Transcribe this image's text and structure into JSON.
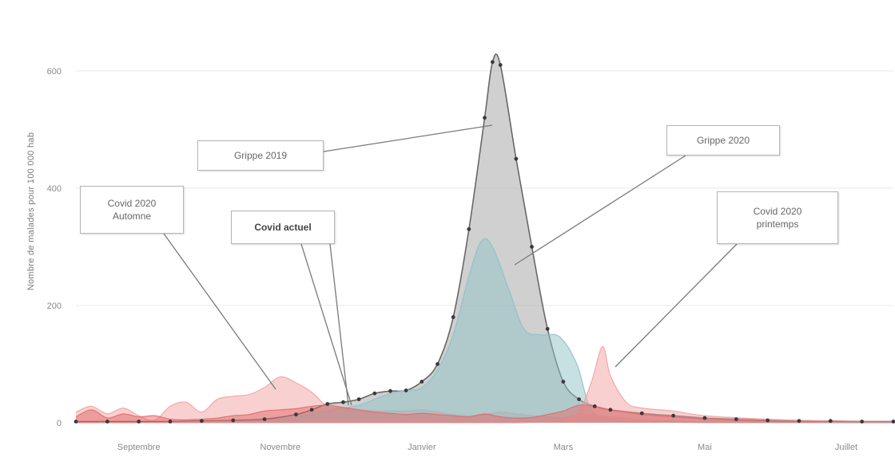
{
  "chart_data": {
    "type": "area",
    "title": "",
    "xlabel": "",
    "ylabel": "Nombre de malades pour 100 000 hab",
    "ylim": [
      0,
      680
    ],
    "y_ticks": [
      0,
      200,
      400,
      600
    ],
    "y_tick_labels": [
      "0",
      "200",
      "400",
      "600"
    ],
    "grid": true,
    "x_ticks": [
      {
        "week": 4,
        "label": "Septembre"
      },
      {
        "week": 13,
        "label": "Novembre"
      },
      {
        "week": 22,
        "label": "Janvier"
      },
      {
        "week": 31,
        "label": "Mars"
      },
      {
        "week": 40,
        "label": "Mai"
      },
      {
        "week": 49,
        "label": "Juillet"
      }
    ],
    "x_range": [
      0,
      52
    ],
    "series": [
      {
        "name": "Grippe 2019",
        "color": "#a9a9a9",
        "markers": true,
        "x": [
          0,
          2,
          4,
          6,
          8,
          10,
          12,
          14,
          15,
          16,
          17,
          18,
          19,
          20,
          21,
          22,
          23,
          24,
          25,
          26,
          26.5,
          27,
          28,
          29,
          30,
          31,
          32,
          33,
          34,
          36,
          38,
          40,
          42,
          44,
          46,
          48,
          50,
          52
        ],
        "y": [
          2,
          2,
          2,
          2,
          3,
          4,
          6,
          14,
          22,
          32,
          35,
          40,
          50,
          54,
          55,
          70,
          100,
          180,
          330,
          520,
          615,
          610,
          450,
          300,
          160,
          70,
          40,
          28,
          22,
          16,
          12,
          8,
          6,
          4,
          3,
          3,
          2,
          2
        ]
      },
      {
        "name": "Grippe 2020",
        "color": "#8fc1c6",
        "x": [
          0,
          4,
          8,
          12,
          14,
          16,
          18,
          19,
          20,
          21,
          22,
          23,
          24,
          25,
          25.8,
          26.5,
          27.5,
          28.5,
          29.5,
          30.5,
          31,
          31.5,
          32,
          32.5,
          33,
          34,
          36,
          40,
          44,
          48,
          52
        ],
        "y": [
          0,
          0,
          2,
          4,
          10,
          20,
          30,
          40,
          50,
          55,
          60,
          90,
          150,
          250,
          310,
          300,
          230,
          160,
          150,
          150,
          140,
          120,
          90,
          40,
          15,
          5,
          2,
          0,
          0,
          0,
          0
        ],
        "connect": false
      },
      {
        "name": "Covid 2020 printemps",
        "color": "#f3a1a1",
        "x": [
          0,
          4,
          8,
          12,
          16,
          20,
          24,
          28,
          30,
          31,
          32,
          32.8,
          33.5,
          34,
          35,
          36,
          38,
          40,
          44,
          48,
          52
        ],
        "y": [
          0,
          0,
          0,
          0,
          0,
          0,
          0,
          0,
          3,
          6,
          20,
          70,
          130,
          80,
          35,
          25,
          20,
          12,
          6,
          3,
          1
        ]
      },
      {
        "name": "Covid 2020 Automne",
        "color": "#f3a1a1",
        "x": [
          0,
          1,
          2,
          3,
          4,
          5,
          6,
          7,
          8,
          9,
          10,
          11,
          12,
          13,
          14,
          15,
          16,
          17,
          18,
          19,
          20,
          21,
          22,
          23,
          24,
          25,
          26,
          27,
          28,
          29,
          30,
          31,
          32,
          33,
          34,
          35,
          36,
          38,
          40,
          44,
          48,
          52
        ],
        "y": [
          18,
          28,
          15,
          25,
          12,
          4,
          28,
          35,
          18,
          40,
          45,
          48,
          60,
          78,
          68,
          52,
          28,
          25,
          22,
          20,
          20,
          20,
          22,
          18,
          14,
          12,
          14,
          18,
          15,
          12,
          10,
          8,
          15,
          12,
          10,
          8,
          5,
          3,
          2,
          1,
          0,
          0
        ]
      },
      {
        "name": "Covid actuel",
        "color": "#e36a6a",
        "x": [
          0,
          1,
          2,
          3,
          4,
          5,
          6,
          7,
          8,
          9,
          10,
          11,
          12,
          13,
          14,
          15,
          16,
          17,
          18,
          19,
          20,
          21,
          22,
          23,
          24,
          25,
          26,
          27,
          28,
          29,
          30,
          31,
          32,
          33,
          34,
          35,
          36,
          37,
          38,
          39,
          40,
          41,
          42,
          43,
          44,
          45,
          46,
          47,
          48,
          49,
          50,
          51,
          52
        ],
        "y": [
          10,
          22,
          8,
          15,
          10,
          12,
          6,
          5,
          6,
          8,
          12,
          14,
          20,
          22,
          24,
          28,
          30,
          26,
          22,
          18,
          16,
          14,
          16,
          14,
          12,
          10,
          15,
          10,
          8,
          9,
          14,
          20,
          30,
          28,
          22,
          18,
          14,
          12,
          10,
          8,
          6,
          5,
          4,
          3,
          3,
          2,
          2,
          2,
          2,
          2,
          2,
          2,
          2
        ]
      }
    ],
    "annotations": [
      {
        "id": "grippe2019",
        "text": "Grippe 2019",
        "bold": false
      },
      {
        "id": "grippe2020",
        "text": "Grippe 2020",
        "bold": false
      },
      {
        "id": "covid_automne",
        "text": "Covid 2020\nAutomne",
        "bold": false
      },
      {
        "id": "covid_actuel",
        "text": "Covid actuel",
        "bold": true
      },
      {
        "id": "covid_printemps",
        "text": "Covid 2020\nprintemps",
        "bold": false
      }
    ]
  }
}
